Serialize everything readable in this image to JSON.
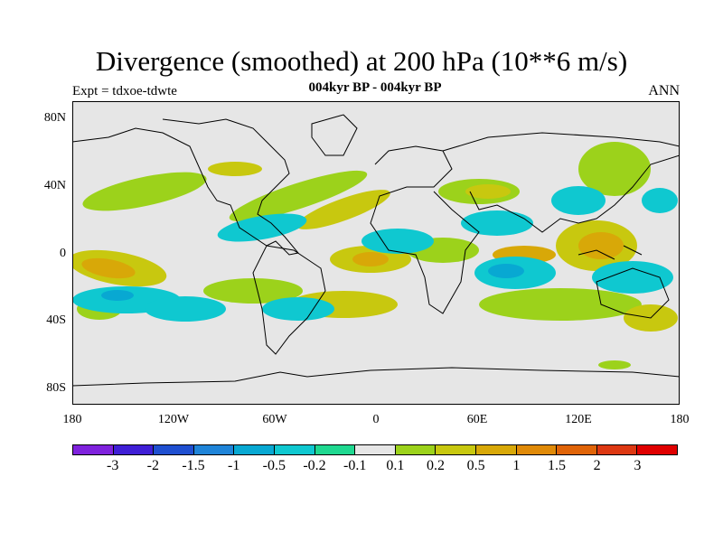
{
  "title": "Divergence (smoothed) at 200 hPa (10**6 m/s)",
  "subtitle": "004kyr BP - 004kyr BP",
  "left_label": "Expt = tdxoe-tdwte",
  "right_label": "ANN",
  "lat_labels": [
    "80N",
    "40N",
    "0",
    "40S",
    "80S"
  ],
  "lon_labels": [
    "180",
    "120W",
    "60W",
    "0",
    "60E",
    "120E",
    "180"
  ],
  "colorbar": {
    "colors": [
      "#7f22dd",
      "#3f1fd6",
      "#1f4fd0",
      "#1f84d8",
      "#08a8d2",
      "#0fc8d0",
      "#1fd890",
      "#e6e6e6",
      "#9cd21b",
      "#c8c80f",
      "#d8a808",
      "#e08a08",
      "#e06408",
      "#dd3812",
      "#e00000"
    ],
    "labels": [
      "-3",
      "-2",
      "-1.5",
      "-1",
      "-0.5",
      "-0.2",
      "-0.1",
      "0.1",
      "0.2",
      "0.5",
      "1",
      "1.5",
      "2",
      "3"
    ]
  },
  "map_colors": {
    "background": "#e6e6e6",
    "coast": "#000000"
  }
}
